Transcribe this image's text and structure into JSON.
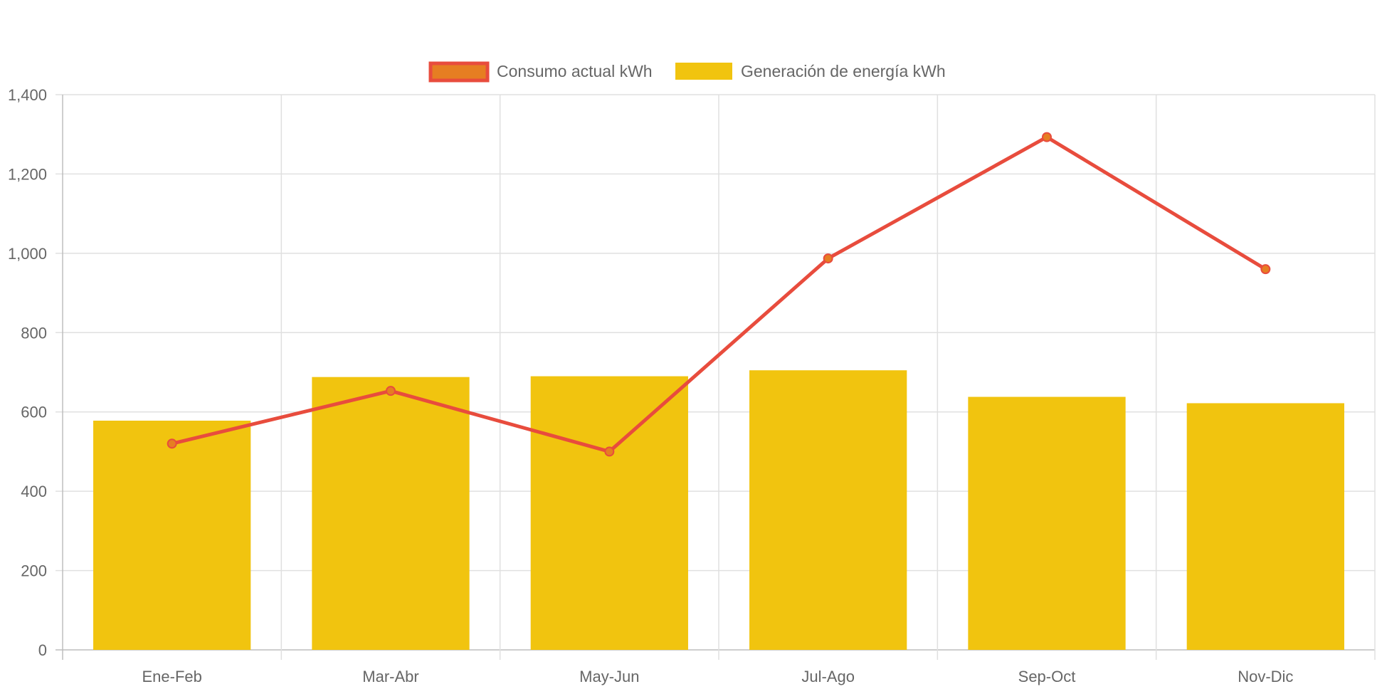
{
  "chart_data": {
    "type": "bar",
    "categories": [
      "Ene-Feb",
      "Mar-Abr",
      "May-Jun",
      "Jul-Ago",
      "Sep-Oct",
      "Nov-Dic"
    ],
    "series": [
      {
        "name": "Consumo actual kWh",
        "type": "line",
        "values": [
          520,
          653,
          500,
          987,
          1293,
          960
        ],
        "color": "#e84c3d",
        "point_fill": "#e67e22"
      },
      {
        "name": "Generación de energía kWh",
        "type": "bar",
        "values": [
          578,
          688,
          690,
          705,
          638,
          622
        ],
        "color": "#f1c40f"
      }
    ],
    "title": "",
    "xlabel": "",
    "ylabel": "",
    "ylim": [
      0,
      1400
    ],
    "yticks": [
      0,
      200,
      400,
      600,
      800,
      1000,
      1200,
      1400
    ],
    "ytick_labels": [
      "0",
      "200",
      "400",
      "600",
      "800",
      "1,000",
      "1,200",
      "1,400"
    ],
    "grid": true,
    "legend_position": "top-center"
  },
  "colors": {
    "grid": "#e0e0e0",
    "axis": "#bdbdbd",
    "tick_text": "#666666"
  }
}
